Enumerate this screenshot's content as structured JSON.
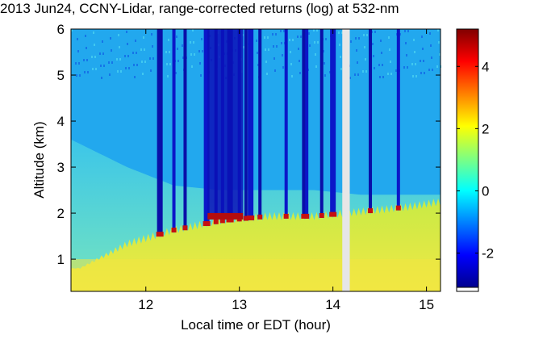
{
  "chart_data": {
    "type": "heatmap",
    "title": "2013 Jun24, CCNY-Lidar, range-corrected returns (log) at 532-nm",
    "xlabel": "Local time or EDT (hour)",
    "ylabel": "Altitude (km)",
    "xlim": [
      11.2,
      15.15
    ],
    "ylim": [
      0.3,
      6.0
    ],
    "x_ticks": [
      "12",
      "13",
      "14",
      "15"
    ],
    "y_ticks": [
      "1",
      "2",
      "3",
      "4",
      "5",
      "6"
    ],
    "colorbar": {
      "range": [
        -3.1,
        5.2
      ],
      "ticks": [
        "-2",
        "0",
        "2",
        "4"
      ],
      "colormap": "jet"
    },
    "data_gap": [
      14.1,
      14.18
    ],
    "layers": [
      {
        "name": "boundary-layer-top",
        "x": [
          11.3,
          11.8,
          12.3,
          12.8,
          13.3,
          13.8,
          14.3,
          14.8,
          15.1
        ],
        "altitude": [
          0.8,
          1.3,
          1.6,
          1.8,
          1.9,
          1.9,
          2.0,
          2.1,
          2.2
        ]
      },
      {
        "name": "residual-layer-top",
        "x": [
          11.2,
          11.8,
          12.3,
          12.8,
          13.3,
          13.8,
          14.3
        ],
        "altitude": [
          3.6,
          3.0,
          2.6,
          2.5,
          2.5,
          2.5,
          2.4
        ]
      }
    ],
    "cloud_columns_hour": [
      12.15,
      12.3,
      12.42,
      12.65,
      12.75,
      12.82,
      12.9,
      13.0,
      13.07,
      13.12,
      13.22,
      13.5,
      13.7,
      13.72,
      13.88,
      14.0,
      14.4,
      14.7
    ]
  }
}
